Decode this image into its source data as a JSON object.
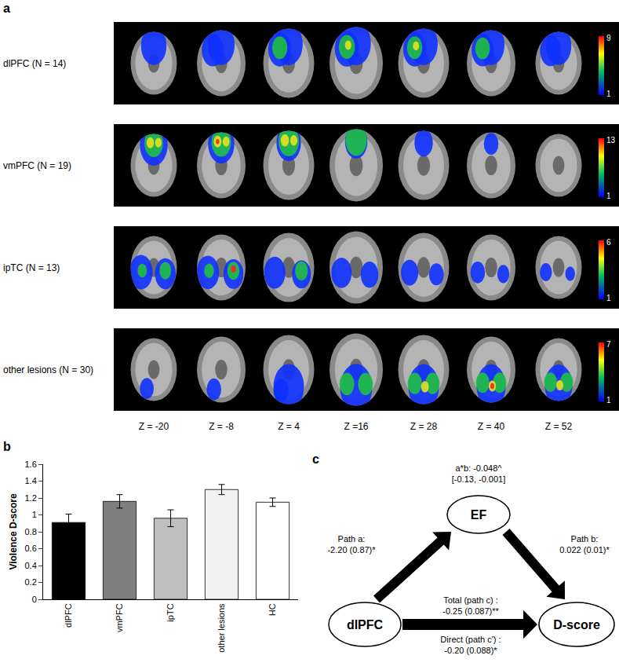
{
  "chart_data": {
    "type": "bar",
    "panel_label": "b",
    "categories": [
      "dlPFC",
      "vmPFC",
      "ipTC",
      "other lesions",
      "HC"
    ],
    "values": [
      0.91,
      1.16,
      0.96,
      1.3,
      1.15
    ],
    "errors": [
      0.1,
      0.08,
      0.1,
      0.06,
      0.05
    ],
    "colors": [
      "#000000",
      "#7f7f7f",
      "#bfbfbf",
      "#f2f2f2",
      "#ffffff"
    ],
    "ylabel": "Violence D-score",
    "ylim": [
      0,
      1.6
    ],
    "yticks": [
      0,
      0.2,
      0.4,
      0.6,
      0.8,
      1,
      1.2,
      1.4,
      1.6
    ],
    "grid": false
  },
  "panel_a": {
    "label": "a",
    "rows": [
      {
        "label": "dlPFC (N = 14)",
        "colorbar_min": 1,
        "colorbar_max": 9
      },
      {
        "label": "vmPFC (N = 19)",
        "colorbar_min": 1,
        "colorbar_max": 13
      },
      {
        "label": "ipTC (N = 13)",
        "colorbar_min": 1,
        "colorbar_max": 6
      },
      {
        "label": "other lesions (N = 30)",
        "colorbar_min": 1,
        "colorbar_max": 7
      }
    ],
    "slices": [
      "Z = -20",
      "Z = -8",
      "Z = 4",
      "Z =16",
      "Z = 28",
      "Z = 40",
      "Z = 52"
    ]
  },
  "panel_c": {
    "label": "c",
    "nodes": {
      "predictor": "dlPFC",
      "mediator": "EF",
      "outcome": "D-score"
    },
    "indirect": [
      "a*b: -0.048^",
      "[-0.13, -0.001]"
    ],
    "path_a": [
      "Path a:",
      "-2.20 (0.87)*"
    ],
    "path_b": [
      "Path b:",
      "0.022 (0.01)*"
    ],
    "total": [
      "Total (path c) :",
      "-0.25 (0.087)**"
    ],
    "direct": [
      "Direct (path c') :",
      "-0.20 (0.088)*"
    ]
  }
}
